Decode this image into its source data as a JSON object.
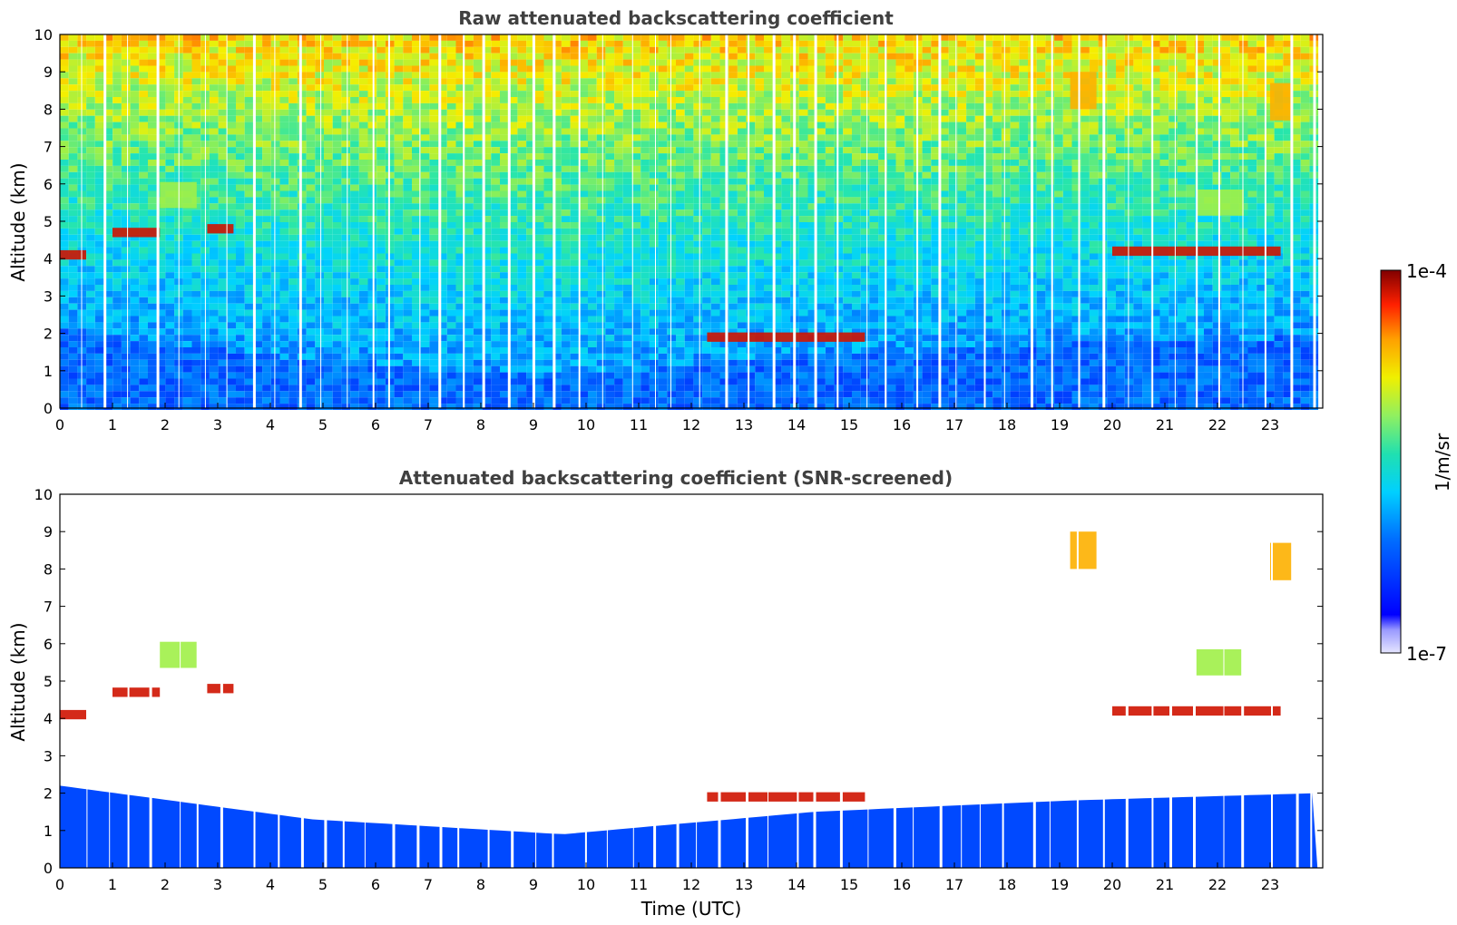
{
  "panels": [
    {
      "title": "Raw attenuated backscattering coefficient",
      "ylabel": "Altitude (km)",
      "xlabel": ""
    },
    {
      "title": "Attenuated backscattering coefficient (SNR-screened)",
      "ylabel": "Altitude (km)",
      "xlabel": "Time (UTC)"
    }
  ],
  "colorbar": {
    "max_label": "1e-4",
    "min_label": "1e-7",
    "unit_label": "1/m/sr",
    "scale": "log",
    "colormap": "jet"
  },
  "chart_data": [
    {
      "type": "heatmap",
      "title": "Raw attenuated backscattering coefficient",
      "xlabel": "",
      "ylabel": "Altitude (km)",
      "xlim": [
        0,
        24
      ],
      "ylim": [
        0,
        10
      ],
      "x_ticks": [
        "0",
        "1",
        "2",
        "3",
        "4",
        "5",
        "6",
        "7",
        "8",
        "9",
        "10",
        "11",
        "12",
        "13",
        "14",
        "15",
        "16",
        "17",
        "18",
        "19",
        "20",
        "21",
        "22",
        "23"
      ],
      "y_ticks": [
        "0",
        "1",
        "2",
        "3",
        "4",
        "5",
        "6",
        "7",
        "8",
        "9",
        "10"
      ],
      "color_range": [
        1e-07,
        0.0001
      ],
      "color_scale": "log",
      "features": [
        {
          "kind": "boundary_layer",
          "t_start": 0,
          "t_end": 23.9,
          "top_km": [
            2.2,
            1.3,
            0.9,
            1.5,
            1.8,
            2.0
          ]
        },
        {
          "kind": "cloud_layer",
          "t_start": 0.0,
          "t_end": 0.5,
          "alt_km": 4.1
        },
        {
          "kind": "cloud_layer",
          "t_start": 1.0,
          "t_end": 1.9,
          "alt_km": 4.7
        },
        {
          "kind": "cloud_layer",
          "t_start": 2.8,
          "t_end": 3.3,
          "alt_km": 4.8
        },
        {
          "kind": "cloud_layer",
          "t_start": 12.3,
          "t_end": 15.3,
          "alt_km": 1.9
        },
        {
          "kind": "cloud_layer",
          "t_start": 20.0,
          "t_end": 23.2,
          "alt_km": 4.2
        },
        {
          "kind": "cirrus",
          "t_start": 19.2,
          "t_end": 19.7,
          "alt_km": 8.5
        },
        {
          "kind": "cirrus",
          "t_start": 23.0,
          "t_end": 23.4,
          "alt_km": 8.2
        },
        {
          "kind": "aerosol",
          "t_start": 1.9,
          "t_end": 2.6,
          "alt_km": 5.7
        },
        {
          "kind": "aerosol",
          "t_start": 21.6,
          "t_end": 22.5,
          "alt_km": 5.5
        }
      ]
    },
    {
      "type": "heatmap",
      "title": "Attenuated backscattering coefficient (SNR-screened)",
      "xlabel": "Time (UTC)",
      "ylabel": "Altitude (km)",
      "xlim": [
        0,
        24
      ],
      "ylim": [
        0,
        10
      ],
      "x_ticks": [
        "0",
        "1",
        "2",
        "3",
        "4",
        "5",
        "6",
        "7",
        "8",
        "9",
        "10",
        "11",
        "12",
        "13",
        "14",
        "15",
        "16",
        "17",
        "18",
        "19",
        "20",
        "21",
        "22",
        "23"
      ],
      "y_ticks": [
        "0",
        "1",
        "2",
        "3",
        "4",
        "5",
        "6",
        "7",
        "8",
        "9",
        "10"
      ],
      "color_range": [
        1e-07,
        0.0001
      ],
      "color_scale": "log",
      "features": [
        {
          "kind": "boundary_layer",
          "t_start": 0,
          "t_end": 23.9,
          "top_km": [
            2.2,
            1.3,
            0.9,
            1.5,
            1.8,
            2.0
          ]
        },
        {
          "kind": "cloud_layer",
          "t_start": 0.0,
          "t_end": 0.5,
          "alt_km": 4.1
        },
        {
          "kind": "cloud_layer",
          "t_start": 1.0,
          "t_end": 1.9,
          "alt_km": 4.7
        },
        {
          "kind": "cloud_layer",
          "t_start": 2.8,
          "t_end": 3.3,
          "alt_km": 4.8
        },
        {
          "kind": "cloud_layer",
          "t_start": 12.3,
          "t_end": 15.3,
          "alt_km": 1.9
        },
        {
          "kind": "cloud_layer",
          "t_start": 20.0,
          "t_end": 23.2,
          "alt_km": 4.2
        },
        {
          "kind": "cirrus",
          "t_start": 19.2,
          "t_end": 19.7,
          "alt_km": 8.5
        },
        {
          "kind": "cirrus",
          "t_start": 23.0,
          "t_end": 23.4,
          "alt_km": 8.2
        },
        {
          "kind": "aerosol",
          "t_start": 1.9,
          "t_end": 2.6,
          "alt_km": 5.7
        },
        {
          "kind": "aerosol",
          "t_start": 21.6,
          "t_end": 22.5,
          "alt_km": 5.5
        }
      ]
    }
  ]
}
